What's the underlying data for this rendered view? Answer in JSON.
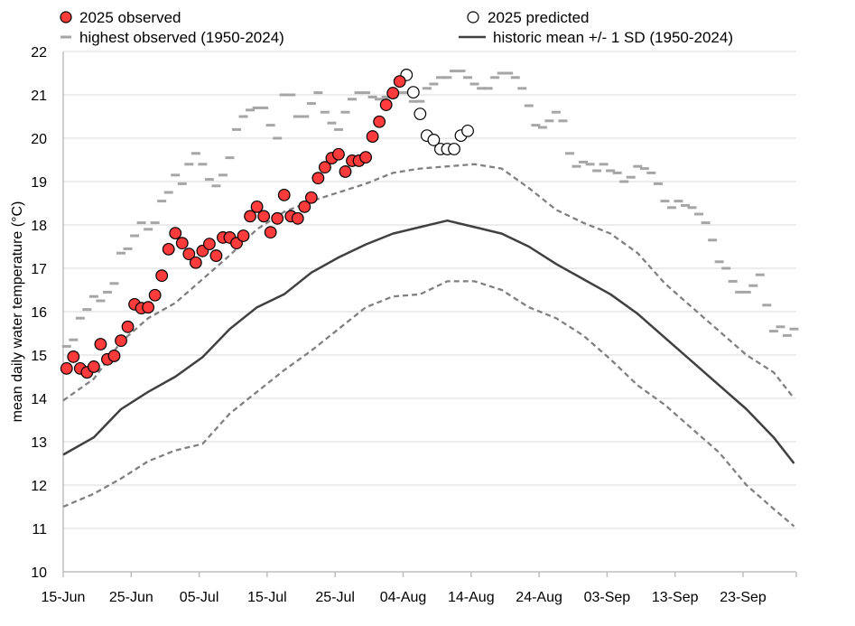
{
  "chart_data": {
    "type": "line",
    "title": "",
    "xlabel": "",
    "ylabel": "mean daily water temperature (°C)",
    "ylim": [
      10,
      22
    ],
    "yticks": [
      "10",
      "11",
      "12",
      "13",
      "14",
      "15",
      "16",
      "17",
      "18",
      "19",
      "20",
      "21",
      "22"
    ],
    "xlim": [
      "15-Jun",
      "30-Sep"
    ],
    "xticks": [
      "15-Jun",
      "25-Jun",
      "05-Jul",
      "15-Jul",
      "25-Jul",
      "04-Aug",
      "14-Aug",
      "24-Aug",
      "03-Sep",
      "13-Sep",
      "23-Sep"
    ],
    "grid": "horizontal",
    "legend_position": "top",
    "colors": {
      "observed": "#ff3b3b",
      "predicted": "#ffffff",
      "highest": "#a6a6a6",
      "mean": "#404040",
      "sd": "#808080",
      "grid": "#d9d9d9"
    },
    "series": [
      {
        "name": "2025 observed",
        "kind": "scatter-filled",
        "x": [
          "15-Jun",
          "16-Jun",
          "17-Jun",
          "18-Jun",
          "19-Jun",
          "20-Jun",
          "21-Jun",
          "22-Jun",
          "23-Jun",
          "24-Jun",
          "25-Jun",
          "26-Jun",
          "27-Jun",
          "28-Jun",
          "29-Jun",
          "30-Jun",
          "01-Jul",
          "02-Jul",
          "03-Jul",
          "04-Jul",
          "05-Jul",
          "06-Jul",
          "07-Jul",
          "08-Jul",
          "09-Jul",
          "10-Jul",
          "11-Jul",
          "12-Jul",
          "13-Jul",
          "14-Jul",
          "15-Jul",
          "16-Jul",
          "17-Jul",
          "18-Jul",
          "19-Jul",
          "20-Jul",
          "21-Jul",
          "22-Jul",
          "23-Jul",
          "24-Jul",
          "25-Jul",
          "26-Jul",
          "27-Jul",
          "28-Jul",
          "29-Jul",
          "30-Jul",
          "31-Jul",
          "01-Aug",
          "02-Aug",
          "03-Aug"
        ],
        "y": [
          14.69,
          14.96,
          14.69,
          14.6,
          14.73,
          15.25,
          14.9,
          14.98,
          15.33,
          15.65,
          16.17,
          16.08,
          16.1,
          16.38,
          16.83,
          17.44,
          17.81,
          17.58,
          17.33,
          17.13,
          17.4,
          17.56,
          17.29,
          17.71,
          17.71,
          17.58,
          17.75,
          18.2,
          18.42,
          18.2,
          17.83,
          18.15,
          18.69,
          18.2,
          18.15,
          18.42,
          18.63,
          19.08,
          19.33,
          19.54,
          19.63,
          19.23,
          19.48,
          19.48,
          19.56,
          20.04,
          20.38,
          20.77,
          21.04,
          21.31
        ]
      },
      {
        "name": "2025 predicted",
        "kind": "scatter-open",
        "x": [
          "04-Aug",
          "05-Aug",
          "06-Aug",
          "07-Aug",
          "08-Aug",
          "09-Aug",
          "10-Aug",
          "11-Aug",
          "12-Aug",
          "13-Aug"
        ],
        "y": [
          21.46,
          21.06,
          20.56,
          20.06,
          19.96,
          19.75,
          19.75,
          19.75,
          20.06,
          20.17
        ]
      },
      {
        "name": "highest observed (1950-2024)",
        "kind": "dash",
        "x": [
          "15-Jun",
          "16-Jun",
          "17-Jun",
          "18-Jun",
          "19-Jun",
          "20-Jun",
          "21-Jun",
          "22-Jun",
          "23-Jun",
          "24-Jun",
          "25-Jun",
          "26-Jun",
          "27-Jun",
          "28-Jun",
          "29-Jun",
          "30-Jun",
          "01-Jul",
          "02-Jul",
          "03-Jul",
          "04-Jul",
          "05-Jul",
          "06-Jul",
          "07-Jul",
          "08-Jul",
          "09-Jul",
          "10-Jul",
          "11-Jul",
          "12-Jul",
          "13-Jul",
          "14-Jul",
          "15-Jul",
          "16-Jul",
          "17-Jul",
          "18-Jul",
          "19-Jul",
          "20-Jul",
          "21-Jul",
          "22-Jul",
          "23-Jul",
          "24-Jul",
          "25-Jul",
          "26-Jul",
          "27-Jul",
          "28-Jul",
          "29-Jul",
          "30-Jul",
          "31-Jul",
          "01-Aug",
          "02-Aug",
          "03-Aug",
          "04-Aug",
          "05-Aug",
          "06-Aug",
          "07-Aug",
          "08-Aug",
          "09-Aug",
          "10-Aug",
          "11-Aug",
          "12-Aug",
          "13-Aug",
          "14-Aug",
          "15-Aug",
          "16-Aug",
          "17-Aug",
          "18-Aug",
          "19-Aug",
          "20-Aug",
          "21-Aug",
          "22-Aug",
          "23-Aug",
          "24-Aug",
          "25-Aug",
          "26-Aug",
          "27-Aug",
          "28-Aug",
          "29-Aug",
          "30-Aug",
          "31-Aug",
          "01-Sep",
          "02-Sep",
          "03-Sep",
          "04-Sep",
          "05-Sep",
          "06-Sep",
          "07-Sep",
          "08-Sep",
          "09-Sep",
          "10-Sep",
          "11-Sep",
          "12-Sep",
          "13-Sep",
          "14-Sep",
          "15-Sep",
          "16-Sep",
          "17-Sep",
          "18-Sep",
          "19-Sep",
          "20-Sep",
          "21-Sep",
          "22-Sep",
          "23-Sep",
          "24-Sep",
          "25-Sep",
          "26-Sep",
          "27-Sep",
          "28-Sep",
          "29-Sep",
          "30-Sep"
        ],
        "y": [
          15.2,
          15.35,
          15.85,
          16.05,
          16.35,
          16.25,
          16.45,
          16.65,
          17.35,
          17.45,
          17.75,
          18.05,
          17.9,
          18.05,
          18.55,
          18.75,
          19.15,
          18.95,
          19.4,
          19.65,
          19.4,
          19.05,
          18.9,
          19.15,
          19.55,
          20.2,
          20.5,
          20.65,
          20.7,
          20.7,
          20.3,
          20.0,
          21.0,
          21.0,
          20.5,
          20.5,
          20.8,
          21.05,
          20.6,
          20.35,
          20.2,
          20.6,
          20.9,
          21.05,
          21.05,
          20.95,
          20.9,
          20.95,
          20.95,
          21.05,
          21.05,
          20.85,
          20.85,
          21.15,
          21.25,
          21.4,
          21.4,
          21.55,
          21.55,
          21.4,
          21.25,
          21.15,
          21.15,
          21.4,
          21.5,
          21.5,
          21.4,
          21.15,
          20.75,
          20.3,
          20.25,
          20.4,
          20.6,
          20.4,
          19.65,
          19.35,
          19.45,
          19.4,
          19.25,
          19.4,
          19.25,
          19.2,
          19.0,
          19.1,
          19.35,
          19.3,
          19.2,
          18.95,
          18.55,
          18.4,
          18.55,
          18.45,
          18.4,
          18.25,
          18.05,
          17.65,
          17.15,
          17.0,
          16.7,
          16.45,
          16.45,
          16.6,
          16.85,
          16.15,
          15.55,
          15.65,
          15.45,
          15.6
        ]
      },
      {
        "name": "historic mean +/- 1 SD (1950-2024)",
        "kind": "solid",
        "x": [
          "15-Jun",
          "19-Jun",
          "23-Jun",
          "27-Jun",
          "01-Jul",
          "05-Jul",
          "09-Jul",
          "13-Jul",
          "17-Jul",
          "21-Jul",
          "25-Jul",
          "29-Jul",
          "02-Aug",
          "06-Aug",
          "10-Aug",
          "14-Aug",
          "18-Aug",
          "22-Aug",
          "26-Aug",
          "30-Aug",
          "03-Sep",
          "07-Sep",
          "11-Sep",
          "15-Sep",
          "19-Sep",
          "23-Sep",
          "27-Sep",
          "30-Sep"
        ],
        "y": [
          12.7,
          13.1,
          13.75,
          14.15,
          14.5,
          14.95,
          15.6,
          16.1,
          16.4,
          16.9,
          17.25,
          17.55,
          17.8,
          17.95,
          18.1,
          17.95,
          17.8,
          17.5,
          17.1,
          16.75,
          16.4,
          15.95,
          15.4,
          14.85,
          14.3,
          13.75,
          13.1,
          12.5
        ]
      },
      {
        "kind": "dashed",
        "x": [
          "15-Jun",
          "19-Jun",
          "23-Jun",
          "27-Jun",
          "01-Jul",
          "05-Jul",
          "09-Jul",
          "13-Jul",
          "17-Jul",
          "21-Jul",
          "25-Jul",
          "29-Jul",
          "02-Aug",
          "06-Aug",
          "10-Aug",
          "14-Aug",
          "18-Aug",
          "22-Aug",
          "26-Aug",
          "30-Aug",
          "03-Sep",
          "07-Sep",
          "11-Sep",
          "15-Sep",
          "19-Sep",
          "23-Sep",
          "27-Sep",
          "30-Sep"
        ],
        "y": [
          13.95,
          14.45,
          15.3,
          15.85,
          16.2,
          16.75,
          17.3,
          17.9,
          18.3,
          18.55,
          18.75,
          18.95,
          19.2,
          19.3,
          19.35,
          19.4,
          19.3,
          18.85,
          18.35,
          18.05,
          17.8,
          17.35,
          16.65,
          16.1,
          15.55,
          15.0,
          14.6,
          14.0
        ]
      },
      {
        "kind": "dashed",
        "x": [
          "15-Jun",
          "19-Jun",
          "23-Jun",
          "27-Jun",
          "01-Jul",
          "05-Jul",
          "09-Jul",
          "13-Jul",
          "17-Jul",
          "21-Jul",
          "25-Jul",
          "29-Jul",
          "02-Aug",
          "06-Aug",
          "10-Aug",
          "14-Aug",
          "18-Aug",
          "22-Aug",
          "26-Aug",
          "30-Aug",
          "03-Sep",
          "07-Sep",
          "11-Sep",
          "15-Sep",
          "19-Sep",
          "23-Sep",
          "27-Sep",
          "30-Sep"
        ],
        "y": [
          11.5,
          11.8,
          12.15,
          12.55,
          12.8,
          12.95,
          13.65,
          14.15,
          14.65,
          15.1,
          15.6,
          16.1,
          16.35,
          16.4,
          16.7,
          16.7,
          16.5,
          16.1,
          15.85,
          15.45,
          14.9,
          14.3,
          13.85,
          13.3,
          12.75,
          12.0,
          11.45,
          11.05
        ]
      }
    ],
    "legend": [
      "2025 observed",
      "2025 predicted",
      "highest observed (1950-2024)",
      "historic mean +/- 1 SD (1950-2024)"
    ]
  }
}
